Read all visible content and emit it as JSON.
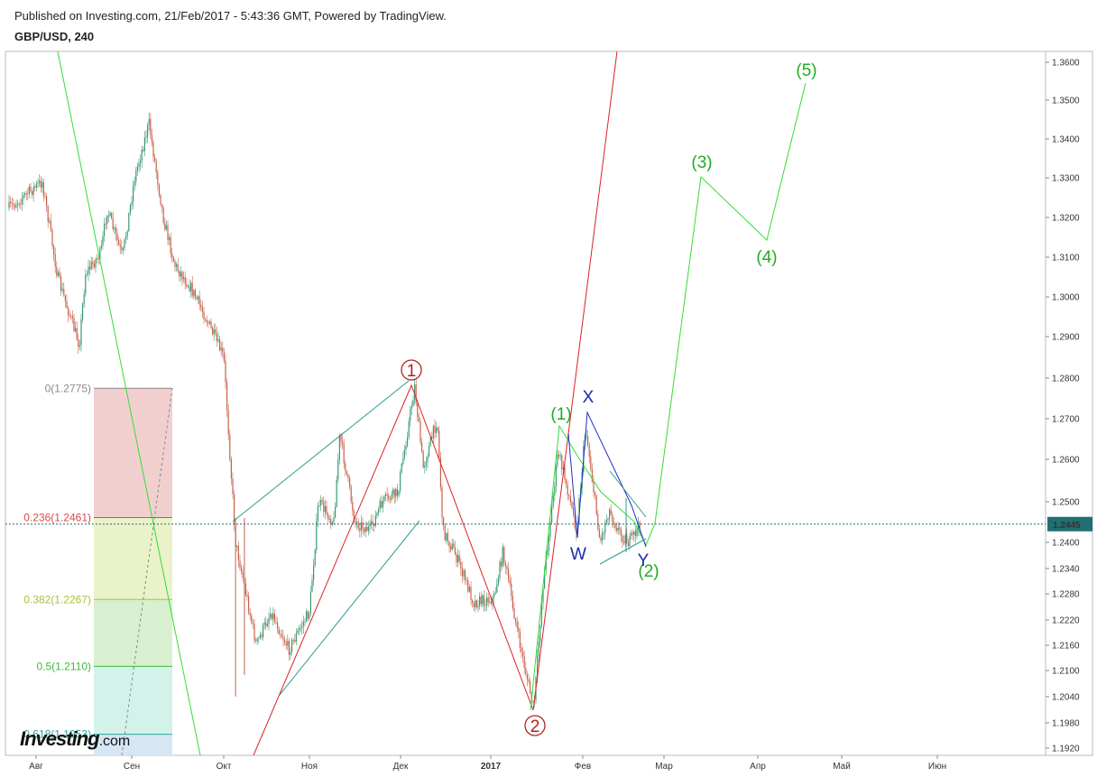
{
  "header": {
    "published": "Published on Investing.com, 21/Feb/2017 - 5:43:36 GMT, Powered by TradingView.",
    "symbol": "GBP/USD, 240"
  },
  "logo": {
    "main": "Investing",
    "suffix": ".com"
  },
  "chart_data": {
    "type": "candlestick",
    "y_ticks": [
      1.36,
      1.35,
      1.34,
      1.33,
      1.32,
      1.31,
      1.3,
      1.29,
      1.28,
      1.27,
      1.26,
      1.25,
      1.24,
      1.234,
      1.228,
      1.222,
      1.216,
      1.21,
      1.204,
      1.198,
      1.192
    ],
    "y_tick_labels": [
      "1.3600",
      "1.3500",
      "1.3400",
      "1.3300",
      "1.3200",
      "1.3100",
      "1.3000",
      "1.2900",
      "1.2800",
      "1.2700",
      "1.2600",
      "1.2500",
      "1.2400",
      "1.2340",
      "1.2280",
      "1.2220",
      "1.2160",
      "1.2100",
      "1.2040",
      "1.1980",
      "1.1920"
    ],
    "x_ticks": [
      "Авг",
      "Сен",
      "Окт",
      "Ноя",
      "Дек",
      "2017",
      "Фев",
      "Мар",
      "Апр",
      "Май",
      "Июн"
    ],
    "current_price": "1.2445",
    "fib_levels": [
      {
        "label": "0(1.2775)",
        "price": 1.2775,
        "color": "#8a8a8a"
      },
      {
        "label": "0.236(1.2461)",
        "price": 1.2461,
        "color": "#d94a4a"
      },
      {
        "label": "0.382(1.2267)",
        "price": 1.2267,
        "color": "#a8c23a"
      },
      {
        "label": "0.5(1.2110)",
        "price": 1.211,
        "color": "#3fb83f"
      },
      {
        "label": "0.618(1.1953)",
        "price": 1.1953,
        "color": "#2aa69a"
      }
    ],
    "wave_labels": {
      "circle1": "1",
      "circle2": "2",
      "g1": "(1)",
      "g2": "(2)",
      "g3": "(3)",
      "g4": "(4)",
      "g5": "(5)",
      "w": "W",
      "x": "X",
      "y": "Y"
    },
    "close_path": [
      [
        "2016-07-29",
        1.322
      ],
      [
        "2016-08-03",
        1.329
      ],
      [
        "2016-08-08",
        1.305
      ],
      [
        "2016-08-10",
        1.3
      ],
      [
        "2016-08-15",
        1.288
      ],
      [
        "2016-08-17",
        1.306
      ],
      [
        "2016-08-22",
        1.311
      ],
      [
        "2016-08-24",
        1.322
      ],
      [
        "2016-08-29",
        1.31
      ],
      [
        "2016-09-02",
        1.33
      ],
      [
        "2016-09-07",
        1.344
      ],
      [
        "2016-09-12",
        1.32
      ],
      [
        "2016-09-16",
        1.308
      ],
      [
        "2016-09-21",
        1.303
      ],
      [
        "2016-09-26",
        1.296
      ],
      [
        "2016-10-03",
        1.285
      ],
      [
        "2016-10-07",
        1.24
      ],
      [
        "2016-10-10",
        1.23
      ],
      [
        "2016-10-14",
        1.216
      ],
      [
        "2016-10-19",
        1.224
      ],
      [
        "2016-10-25",
        1.215
      ],
      [
        "2016-11-01",
        1.224
      ],
      [
        "2016-11-04",
        1.25
      ],
      [
        "2016-11-09",
        1.245
      ],
      [
        "2016-11-11",
        1.266
      ],
      [
        "2016-11-16",
        1.245
      ],
      [
        "2016-11-21",
        1.243
      ],
      [
        "2016-11-25",
        1.25
      ],
      [
        "2016-11-30",
        1.252
      ],
      [
        "2016-12-06",
        1.278
      ],
      [
        "2016-12-09",
        1.258
      ],
      [
        "2016-12-14",
        1.27
      ],
      [
        "2016-12-16",
        1.243
      ],
      [
        "2016-12-20",
        1.238
      ],
      [
        "2016-12-27",
        1.226
      ],
      [
        "2017-01-03",
        1.227
      ],
      [
        "2017-01-06",
        1.238
      ],
      [
        "2017-01-11",
        1.218
      ],
      [
        "2017-01-16",
        1.201
      ],
      [
        "2017-01-19",
        1.23
      ],
      [
        "2017-01-24",
        1.262
      ],
      [
        "2017-01-27",
        1.253
      ],
      [
        "2017-01-30",
        1.243
      ],
      [
        "2017-02-02",
        1.268
      ],
      [
        "2017-02-07",
        1.24
      ],
      [
        "2017-02-10",
        1.248
      ],
      [
        "2017-02-14",
        1.242
      ],
      [
        "2017-02-17",
        1.24
      ],
      [
        "2017-02-21",
        1.2445
      ]
    ]
  }
}
